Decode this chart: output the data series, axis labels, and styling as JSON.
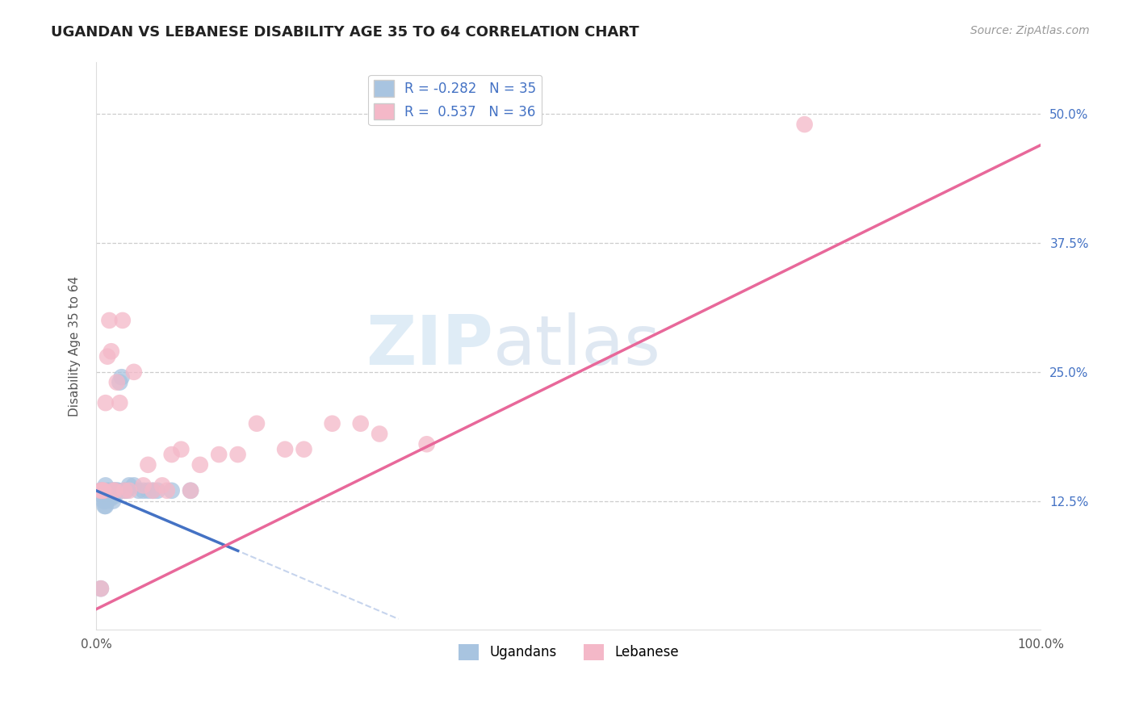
{
  "title": "UGANDAN VS LEBANESE DISABILITY AGE 35 TO 64 CORRELATION CHART",
  "source": "Source: ZipAtlas.com",
  "ylabel": "Disability Age 35 to 64",
  "xlim": [
    0,
    1.0
  ],
  "ylim": [
    0,
    0.55
  ],
  "x_ticks": [
    0.0,
    1.0
  ],
  "x_tick_labels": [
    "0.0%",
    "100.0%"
  ],
  "y_ticks": [
    0.125,
    0.25,
    0.375,
    0.5
  ],
  "y_tick_labels": [
    "12.5%",
    "25.0%",
    "37.5%",
    "50.0%"
  ],
  "ugandan_R": -0.282,
  "ugandan_N": 35,
  "lebanese_R": 0.537,
  "lebanese_N": 36,
  "ugandan_color": "#a8c4e0",
  "lebanese_color": "#f4b8c8",
  "ugandan_line_color": "#4472c4",
  "lebanese_line_color": "#e8689a",
  "background_color": "#ffffff",
  "grid_color": "#c8c8c8",
  "watermark_zip": "ZIP",
  "watermark_atlas": "atlas",
  "ugandan_x": [
    0.005,
    0.007,
    0.008,
    0.009,
    0.01,
    0.01,
    0.01,
    0.01,
    0.012,
    0.013,
    0.014,
    0.015,
    0.015,
    0.016,
    0.017,
    0.018,
    0.019,
    0.02,
    0.02,
    0.022,
    0.023,
    0.025,
    0.027,
    0.03,
    0.032,
    0.035,
    0.04,
    0.045,
    0.05,
    0.055,
    0.06,
    0.065,
    0.08,
    0.1,
    0.005
  ],
  "ugandan_y": [
    0.135,
    0.13,
    0.125,
    0.12,
    0.14,
    0.13,
    0.125,
    0.12,
    0.135,
    0.13,
    0.128,
    0.132,
    0.127,
    0.135,
    0.13,
    0.125,
    0.135,
    0.135,
    0.13,
    0.135,
    0.135,
    0.24,
    0.245,
    0.135,
    0.135,
    0.14,
    0.14,
    0.135,
    0.135,
    0.135,
    0.135,
    0.135,
    0.135,
    0.135,
    0.04
  ],
  "lebanese_x": [
    0.005,
    0.006,
    0.007,
    0.008,
    0.01,
    0.012,
    0.014,
    0.016,
    0.018,
    0.02,
    0.022,
    0.025,
    0.028,
    0.03,
    0.035,
    0.04,
    0.05,
    0.055,
    0.06,
    0.07,
    0.075,
    0.08,
    0.09,
    0.1,
    0.11,
    0.13,
    0.15,
    0.17,
    0.2,
    0.22,
    0.25,
    0.28,
    0.3,
    0.35,
    0.75,
    0.005
  ],
  "lebanese_y": [
    0.135,
    0.135,
    0.135,
    0.135,
    0.22,
    0.265,
    0.3,
    0.27,
    0.135,
    0.135,
    0.24,
    0.22,
    0.3,
    0.135,
    0.135,
    0.25,
    0.14,
    0.16,
    0.135,
    0.14,
    0.135,
    0.17,
    0.175,
    0.135,
    0.16,
    0.17,
    0.17,
    0.2,
    0.175,
    0.175,
    0.2,
    0.2,
    0.19,
    0.18,
    0.49,
    0.04
  ]
}
